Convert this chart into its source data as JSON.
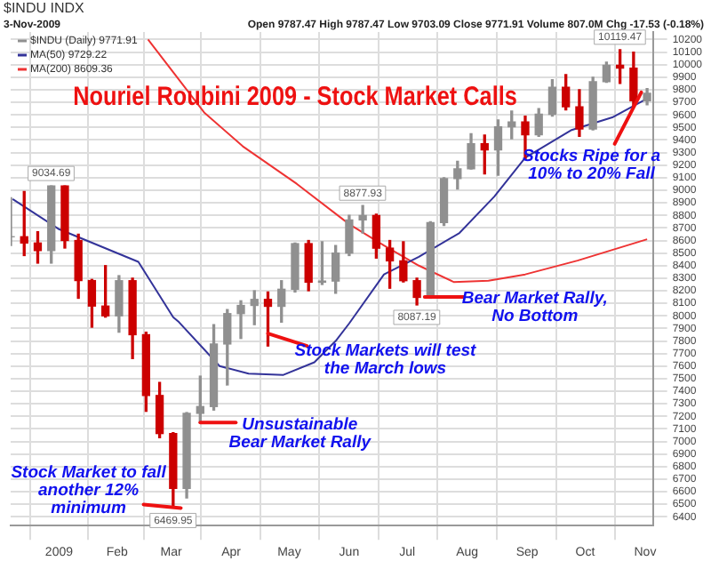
{
  "chart_data": {
    "type": "candlestick",
    "title": "Nouriel Roubini 2009 - Stock Market Calls",
    "subtitle": "$INDU INDX",
    "series": [
      {
        "name": "$INDU (Daily) 9771.91",
        "type": "candlestick",
        "x": [
          "2008-12-08",
          "2008-12-15",
          "2008-12-22",
          "2008-12-29",
          "2009-01-05",
          "2009-01-12",
          "2009-01-19",
          "2009-01-26",
          "2009-02-02",
          "2009-02-09",
          "2009-02-16",
          "2009-02-23",
          "2009-03-02",
          "2009-03-09",
          "2009-03-16",
          "2009-03-23",
          "2009-03-30",
          "2009-04-06",
          "2009-04-13",
          "2009-04-20",
          "2009-04-27",
          "2009-05-04",
          "2009-05-11",
          "2009-05-18",
          "2009-05-25",
          "2009-06-01",
          "2009-06-08",
          "2009-06-15",
          "2009-06-22",
          "2009-06-29",
          "2009-07-06",
          "2009-07-13",
          "2009-07-20",
          "2009-07-27",
          "2009-08-03",
          "2009-08-10",
          "2009-08-17",
          "2009-08-24",
          "2009-08-31",
          "2009-09-07",
          "2009-09-14",
          "2009-09-21",
          "2009-09-28",
          "2009-10-05",
          "2009-10-12",
          "2009-10-19",
          "2009-10-26",
          "2009-11-02"
        ],
        "ohlc": [
          [
            8630,
            8940,
            8560,
            8630
          ],
          [
            8630,
            8990,
            8480,
            8580
          ],
          [
            8580,
            8670,
            8420,
            8520
          ],
          [
            8520,
            9035,
            8420,
            9034
          ],
          [
            9034,
            9034,
            8540,
            8600
          ],
          [
            8600,
            8650,
            8140,
            8281
          ],
          [
            8281,
            8290,
            7910,
            8078
          ],
          [
            8078,
            8400,
            7990,
            8000
          ],
          [
            8000,
            8320,
            7870,
            8280
          ],
          [
            8280,
            8300,
            7660,
            7850
          ],
          [
            7850,
            7870,
            7240,
            7366
          ],
          [
            7366,
            7470,
            7030,
            7063
          ],
          [
            7063,
            7070,
            6470,
            6627
          ],
          [
            6627,
            7230,
            6550,
            7224
          ],
          [
            7224,
            7520,
            7150,
            7278
          ],
          [
            7278,
            7930,
            7250,
            7776
          ],
          [
            7776,
            8050,
            7450,
            8018
          ],
          [
            8018,
            8120,
            7820,
            8083
          ],
          [
            8083,
            8200,
            7930,
            8131
          ],
          [
            8131,
            8190,
            7760,
            8076
          ],
          [
            8076,
            8280,
            7950,
            8212
          ],
          [
            8212,
            8580,
            8190,
            8575
          ],
          [
            8575,
            8600,
            8200,
            8268
          ],
          [
            8268,
            8590,
            8250,
            8277
          ],
          [
            8277,
            8560,
            8180,
            8500
          ],
          [
            8500,
            8800,
            8480,
            8764
          ],
          [
            8764,
            8878,
            8660,
            8799
          ],
          [
            8799,
            8810,
            8460,
            8539
          ],
          [
            8539,
            8600,
            8220,
            8438
          ],
          [
            8438,
            8590,
            8270,
            8280
          ],
          [
            8280,
            8300,
            8087,
            8147
          ],
          [
            8147,
            8750,
            8140,
            8743
          ],
          [
            8743,
            9100,
            8720,
            9093
          ],
          [
            9093,
            9230,
            9010,
            9171
          ],
          [
            9171,
            9450,
            9170,
            9370
          ],
          [
            9370,
            9440,
            9130,
            9321
          ],
          [
            9321,
            9560,
            9120,
            9505
          ],
          [
            9505,
            9630,
            9410,
            9544
          ],
          [
            9544,
            9590,
            9250,
            9441
          ],
          [
            9441,
            9650,
            9430,
            9605
          ],
          [
            9605,
            9880,
            9590,
            9820
          ],
          [
            9820,
            9920,
            9640,
            9665
          ],
          [
            9665,
            9800,
            9430,
            9488
          ],
          [
            9488,
            9900,
            9480,
            9864
          ],
          [
            9864,
            10020,
            9860,
            9996
          ],
          [
            9996,
            10119,
            9850,
            9972
          ],
          [
            9972,
            10100,
            9670,
            9712
          ],
          [
            9712,
            9810,
            9680,
            9772
          ]
        ],
        "colors": [
          "#909090",
          "#cc0000",
          "#cc0000",
          "#909090",
          "#cc0000",
          "#cc0000",
          "#cc0000",
          "#cc0000",
          "#909090",
          "#cc0000",
          "#cc0000",
          "#cc0000",
          "#cc0000",
          "#909090",
          "#909090",
          "#909090",
          "#909090",
          "#909090",
          "#909090",
          "#cc0000",
          "#909090",
          "#909090",
          "#cc0000",
          "#909090",
          "#909090",
          "#909090",
          "#909090",
          "#cc0000",
          "#cc0000",
          "#cc0000",
          "#cc0000",
          "#909090",
          "#909090",
          "#909090",
          "#909090",
          "#cc0000",
          "#909090",
          "#909090",
          "#cc0000",
          "#909090",
          "#909090",
          "#cc0000",
          "#cc0000",
          "#909090",
          "#909090",
          "#cc0000",
          "#cc0000",
          "#909090"
        ]
      },
      {
        "name": "MA(50) 9729.22",
        "type": "line",
        "color": "#333399",
        "x": [
          "2008-12-09",
          "2009-01-02",
          "2009-02-12",
          "2009-03-02",
          "2009-03-05",
          "2009-03-26",
          "2009-04-10",
          "2009-04-28",
          "2009-05-14",
          "2009-05-25",
          "2009-06-01",
          "2009-06-19",
          "2009-07-07",
          "2009-07-28",
          "2009-08-15",
          "2009-08-31",
          "2009-09-24",
          "2009-10-15",
          "2009-11-02"
        ],
        "values": [
          8930,
          8690,
          8430,
          7990,
          7950,
          7600,
          7540,
          7530,
          7630,
          7800,
          7940,
          8330,
          8470,
          8660,
          8950,
          9260,
          9480,
          9580,
          9730
        ]
      },
      {
        "name": "MA(200) 8609.36",
        "type": "line",
        "color": "#ee3333",
        "x": [
          "2009-02-17",
          "2009-03-18",
          "2009-04-07",
          "2009-05-05",
          "2009-06-01",
          "2009-06-19",
          "2009-07-07",
          "2009-07-25",
          "2009-08-12",
          "2009-08-31",
          "2009-09-27",
          "2009-11-02"
        ],
        "values": [
          10200,
          9620,
          9350,
          9050,
          8730,
          8560,
          8400,
          8270,
          8280,
          8330,
          8440,
          8610
        ]
      }
    ],
    "xlim": [
      "2008-12-08",
      "2009-11-05"
    ],
    "xticks": [
      {
        "value": "2009-01-02",
        "label": "2009"
      },
      {
        "value": "2009-02-01",
        "label": "Feb"
      },
      {
        "value": "2009-03-01",
        "label": "Mar"
      },
      {
        "value": "2009-04-01",
        "label": "Apr"
      },
      {
        "value": "2009-05-01",
        "label": "May"
      },
      {
        "value": "2009-06-01",
        "label": "Jun"
      },
      {
        "value": "2009-07-01",
        "label": "Jul"
      },
      {
        "value": "2009-08-01",
        "label": "Aug"
      },
      {
        "value": "2009-09-01",
        "label": "Sep"
      },
      {
        "value": "2009-10-01",
        "label": "Oct"
      },
      {
        "value": "2009-11-01",
        "label": "Nov"
      }
    ],
    "ylim": [
      6330,
      10260
    ],
    "yticks": [
      6400,
      6500,
      6600,
      6700,
      6800,
      6900,
      7000,
      7100,
      7200,
      7300,
      7400,
      7500,
      7600,
      7700,
      7800,
      7900,
      8000,
      8100,
      8200,
      8300,
      8400,
      8500,
      8600,
      8700,
      8800,
      8900,
      9000,
      9100,
      9200,
      9300,
      9400,
      9500,
      9600,
      9700,
      9800,
      9900,
      10000,
      10100,
      10200
    ],
    "grid": true,
    "legend": "top left",
    "annotations": [
      "3-Nov-2009",
      "Open 9787.47 High 9787.47 Low 9703.09 Close 9771.91 Volume 807.0M Chg -17.53 (-0.18%)",
      {
        "text": "Stock Market to fall another 12% minimum",
        "x": "2009-03-06",
        "y": 6470
      },
      {
        "text": "Unsustainable Bear Market Rally",
        "x": "2009-03-16",
        "y": 7150
      },
      {
        "text": "Stock Markets will test the March lows",
        "x": "2009-04-20",
        "y": 7860
      },
      {
        "text": "Bear Market Rally, No Bottom",
        "x": "2009-07-10",
        "y": 8150
      },
      {
        "text": "Stocks Ripe for a 10% to 20% Fall",
        "x": "2009-10-30",
        "y": 9780
      },
      {
        "text": "9034.69",
        "x": "2008-12-29",
        "y": 9034.69
      },
      {
        "text": "6469.95",
        "x": "2009-03-02",
        "y": 6469.95
      },
      {
        "text": "8877.93",
        "x": "2009-06-08",
        "y": 8877.93
      },
      {
        "text": "8087.19",
        "x": "2009-07-06",
        "y": 8087.19
      },
      {
        "text": "10119.47",
        "x": "2009-10-19",
        "y": 10119.47
      }
    ]
  }
}
